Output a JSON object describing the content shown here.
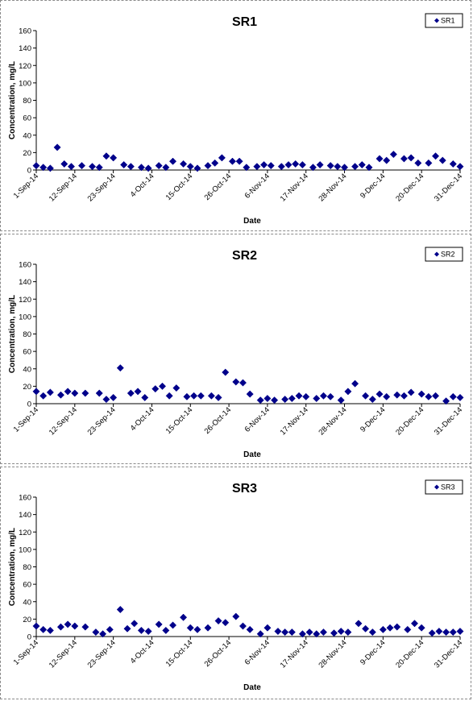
{
  "chart_data": [
    {
      "type": "scatter",
      "title": "SR1",
      "xlabel": "Date",
      "ylabel": "Concentration, mg/L",
      "ylim": [
        0,
        160
      ],
      "yticks": [
        "0",
        "20",
        "40",
        "60",
        "80",
        "100",
        "120",
        "140",
        "160"
      ],
      "xlim": [
        "2014-09-01",
        "2014-12-31"
      ],
      "xticks": [
        "1-Sep-14",
        "12-Sep-14",
        "23-Sep-14",
        "4-Oct-14",
        "15-Oct-14",
        "26-Oct-14",
        "6-Nov-14",
        "17-Nov-14",
        "28-Nov-14",
        "9-Dec-14",
        "20-Dec-14",
        "31-Dec-14"
      ],
      "grid": false,
      "legend_position": "top-right",
      "series": [
        {
          "name": "SR1",
          "color": "#00008B",
          "x": [
            "2014-09-01",
            "2014-09-03",
            "2014-09-05",
            "2014-09-07",
            "2014-09-09",
            "2014-09-11",
            "2014-09-14",
            "2014-09-17",
            "2014-09-19",
            "2014-09-21",
            "2014-09-23",
            "2014-09-26",
            "2014-09-28",
            "2014-10-01",
            "2014-10-03",
            "2014-10-06",
            "2014-10-08",
            "2014-10-10",
            "2014-10-13",
            "2014-10-15",
            "2014-10-17",
            "2014-10-20",
            "2014-10-22",
            "2014-10-24",
            "2014-10-27",
            "2014-10-29",
            "2014-10-31",
            "2014-11-03",
            "2014-11-05",
            "2014-11-07",
            "2014-11-10",
            "2014-11-12",
            "2014-11-14",
            "2014-11-16",
            "2014-11-19",
            "2014-11-21",
            "2014-11-24",
            "2014-11-26",
            "2014-11-28",
            "2014-12-01",
            "2014-12-03",
            "2014-12-05",
            "2014-12-08",
            "2014-12-10",
            "2014-12-12",
            "2014-12-15",
            "2014-12-17",
            "2014-12-19",
            "2014-12-22",
            "2014-12-24",
            "2014-12-26",
            "2014-12-29",
            "2014-12-31"
          ],
          "y": [
            5,
            3,
            2,
            26,
            7,
            4,
            5,
            4,
            3,
            16,
            14,
            6,
            4,
            3,
            2,
            5,
            3,
            10,
            7,
            4,
            2,
            5,
            8,
            14,
            10,
            10,
            3,
            4,
            6,
            5,
            4,
            6,
            7,
            6,
            3,
            6,
            5,
            4,
            3,
            4,
            6,
            3,
            13,
            11,
            18,
            13,
            14,
            8,
            8,
            16,
            11,
            7,
            4
          ]
        }
      ]
    },
    {
      "type": "scatter",
      "title": "SR2",
      "xlabel": "Date",
      "ylabel": "Concentration, mg/L",
      "ylim": [
        0,
        160
      ],
      "yticks": [
        "0",
        "20",
        "40",
        "60",
        "80",
        "100",
        "120",
        "140",
        "160"
      ],
      "xlim": [
        "2014-09-01",
        "2014-12-31"
      ],
      "xticks": [
        "1-Sep-14",
        "12-Sep-14",
        "23-Sep-14",
        "4-Oct-14",
        "15-Oct-14",
        "26-Oct-14",
        "6-Nov-14",
        "17-Nov-14",
        "28-Nov-14",
        "9-Dec-14",
        "20-Dec-14",
        "31-Dec-14"
      ],
      "grid": false,
      "legend_position": "top-right",
      "series": [
        {
          "name": "SR2",
          "color": "#00008B",
          "x": [
            "2014-09-01",
            "2014-09-03",
            "2014-09-05",
            "2014-09-08",
            "2014-09-10",
            "2014-09-12",
            "2014-09-15",
            "2014-09-19",
            "2014-09-21",
            "2014-09-23",
            "2014-09-25",
            "2014-09-28",
            "2014-09-30",
            "2014-10-02",
            "2014-10-05",
            "2014-10-07",
            "2014-10-09",
            "2014-10-11",
            "2014-10-14",
            "2014-10-16",
            "2014-10-18",
            "2014-10-21",
            "2014-10-23",
            "2014-10-25",
            "2014-10-28",
            "2014-10-30",
            "2014-11-01",
            "2014-11-04",
            "2014-11-06",
            "2014-11-08",
            "2014-11-11",
            "2014-11-13",
            "2014-11-15",
            "2014-11-17",
            "2014-11-20",
            "2014-11-22",
            "2014-11-24",
            "2014-11-27",
            "2014-11-29",
            "2014-12-01",
            "2014-12-04",
            "2014-12-06",
            "2014-12-08",
            "2014-12-10",
            "2014-12-13",
            "2014-12-15",
            "2014-12-17",
            "2014-12-20",
            "2014-12-22",
            "2014-12-24",
            "2014-12-27",
            "2014-12-29",
            "2014-12-31"
          ],
          "y": [
            14,
            9,
            13,
            10,
            14,
            12,
            12,
            12,
            5,
            7,
            41,
            12,
            14,
            7,
            17,
            20,
            9,
            18,
            8,
            9,
            9,
            9,
            7,
            36,
            25,
            24,
            11,
            4,
            6,
            4,
            5,
            6,
            9,
            8,
            6,
            9,
            8,
            4,
            14,
            23,
            9,
            5,
            11,
            8,
            10,
            9,
            13,
            11,
            8,
            9,
            3,
            8,
            7
          ]
        }
      ]
    },
    {
      "type": "scatter",
      "title": "SR3",
      "xlabel": "Date",
      "ylabel": "Concentration, mg/L",
      "ylim": [
        0,
        160
      ],
      "yticks": [
        "0",
        "20",
        "40",
        "60",
        "80",
        "100",
        "120",
        "140",
        "160"
      ],
      "xlim": [
        "2014-09-01",
        "2014-12-31"
      ],
      "xticks": [
        "1-Sep-14",
        "12-Sep-14",
        "23-Sep-14",
        "4-Oct-14",
        "15-Oct-14",
        "26-Oct-14",
        "6-Nov-14",
        "17-Nov-14",
        "28-Nov-14",
        "9-Dec-14",
        "20-Dec-14",
        "31-Dec-14"
      ],
      "grid": false,
      "legend_position": "top-right",
      "series": [
        {
          "name": "SR3",
          "color": "#00008B",
          "x": [
            "2014-09-01",
            "2014-09-03",
            "2014-09-05",
            "2014-09-08",
            "2014-09-10",
            "2014-09-12",
            "2014-09-15",
            "2014-09-18",
            "2014-09-20",
            "2014-09-22",
            "2014-09-25",
            "2014-09-27",
            "2014-09-29",
            "2014-10-01",
            "2014-10-03",
            "2014-10-06",
            "2014-10-08",
            "2014-10-10",
            "2014-10-13",
            "2014-10-15",
            "2014-10-17",
            "2014-10-20",
            "2014-10-23",
            "2014-10-25",
            "2014-10-28",
            "2014-10-30",
            "2014-11-01",
            "2014-11-04",
            "2014-11-06",
            "2014-11-09",
            "2014-11-11",
            "2014-11-13",
            "2014-11-16",
            "2014-11-18",
            "2014-11-20",
            "2014-11-22",
            "2014-11-25",
            "2014-11-27",
            "2014-11-29",
            "2014-12-02",
            "2014-12-04",
            "2014-12-06",
            "2014-12-09",
            "2014-12-11",
            "2014-12-13",
            "2014-12-16",
            "2014-12-18",
            "2014-12-20",
            "2014-12-23",
            "2014-12-25",
            "2014-12-27",
            "2014-12-29",
            "2014-12-31"
          ],
          "y": [
            12,
            8,
            7,
            11,
            14,
            12,
            11,
            5,
            3,
            8,
            31,
            9,
            15,
            7,
            6,
            14,
            7,
            13,
            22,
            10,
            8,
            10,
            18,
            16,
            23,
            12,
            8,
            3,
            10,
            6,
            5,
            5,
            3,
            5,
            3,
            5,
            4,
            6,
            5,
            15,
            9,
            5,
            8,
            10,
            11,
            8,
            15,
            10,
            4,
            6,
            5,
            5,
            6
          ]
        }
      ]
    }
  ]
}
